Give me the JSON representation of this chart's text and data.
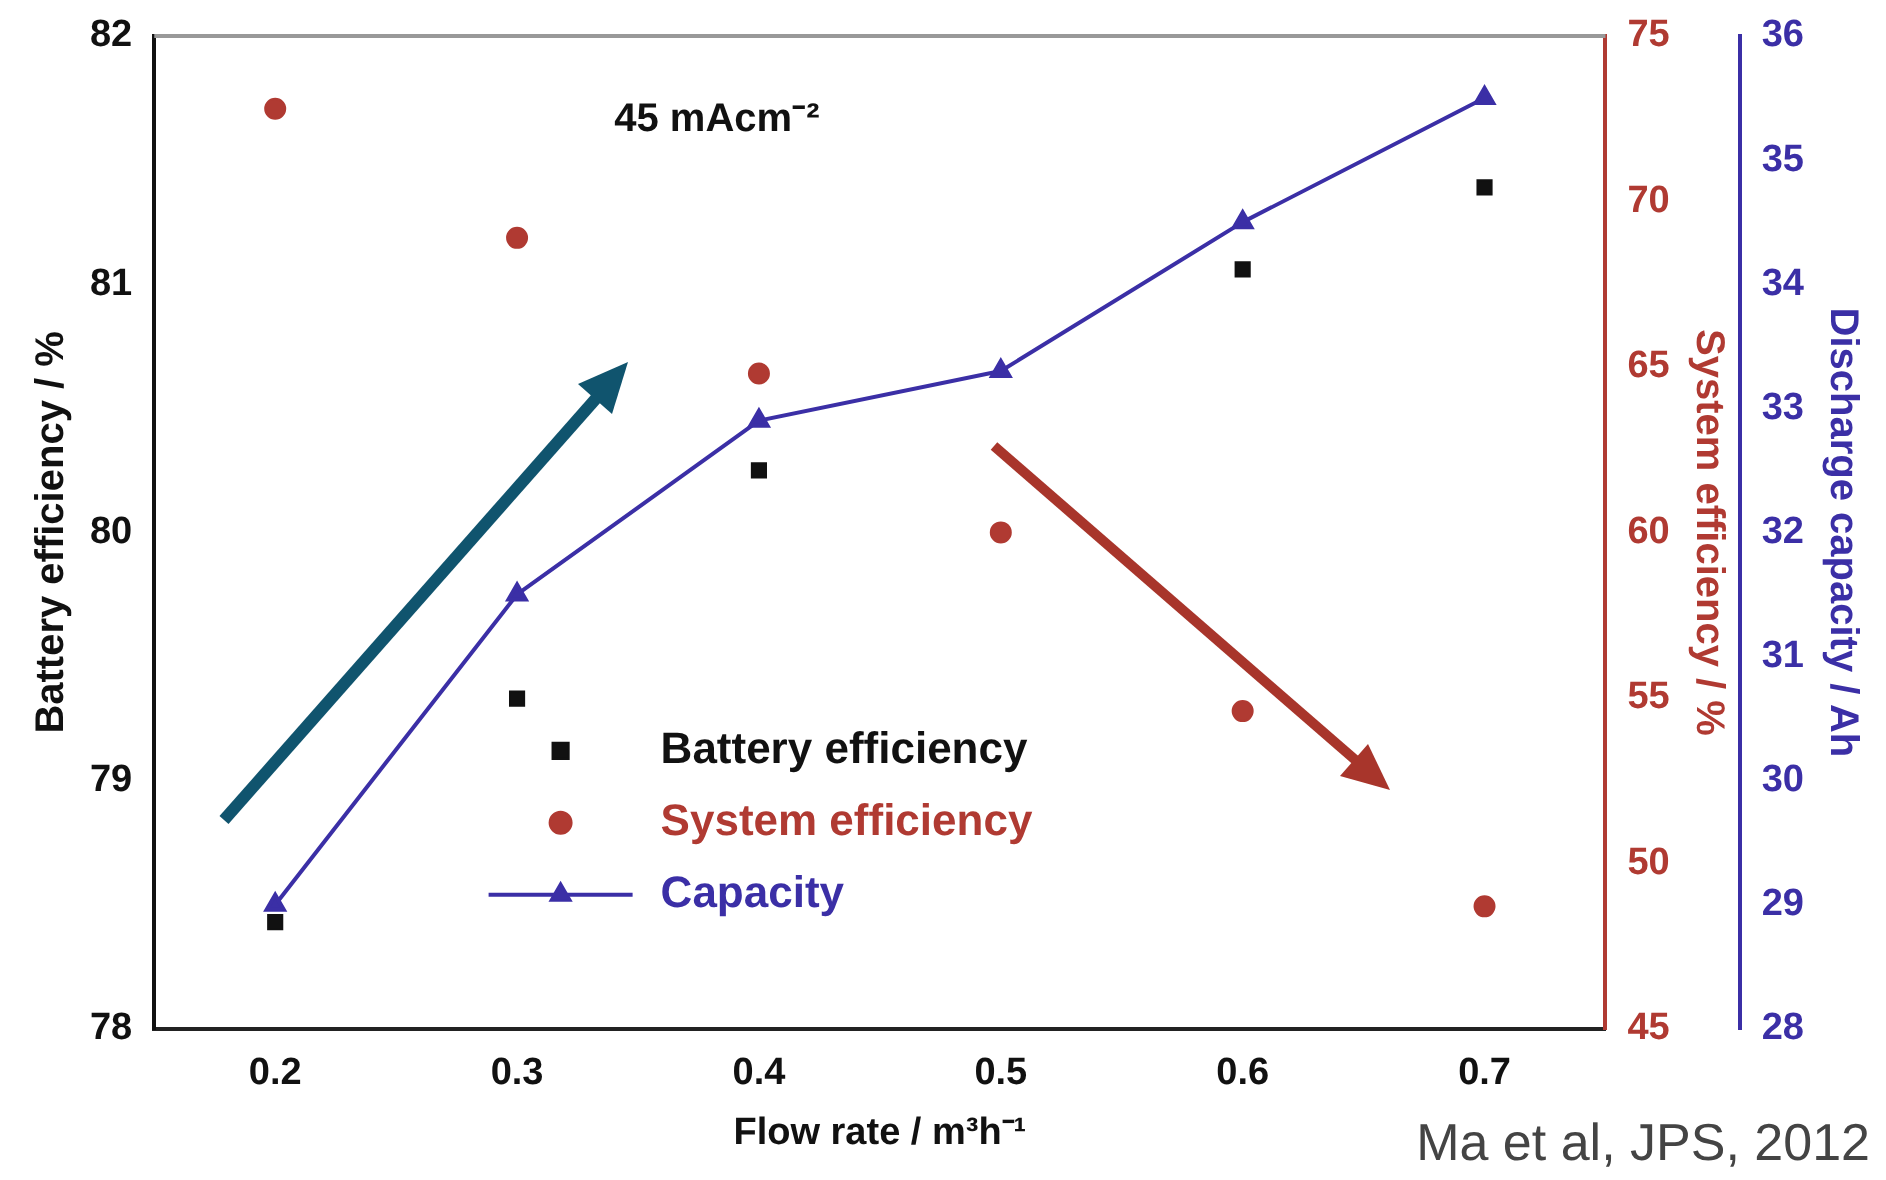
{
  "chart_data": {
    "type": "scatter",
    "xlabel": "Flow rate / m³h⁻¹",
    "ylabel": "Battery efficiency / %",
    "y2label": "System efficiency / %",
    "y3label": "Discharge capacity / Ah",
    "x": [
      0.2,
      0.3,
      0.4,
      0.5,
      0.6,
      0.7
    ],
    "xlim": [
      0.15,
      0.75
    ],
    "xticks": [
      0.2,
      0.3,
      0.4,
      0.5,
      0.6,
      0.7
    ],
    "ylim": [
      78,
      82
    ],
    "yticks": [
      78,
      79,
      80,
      81,
      82
    ],
    "y2lim": [
      45,
      75
    ],
    "y2ticks": [
      45,
      50,
      55,
      60,
      65,
      70,
      75
    ],
    "y3lim": [
      28,
      36
    ],
    "y3ticks": [
      28,
      29,
      30,
      31,
      32,
      33,
      34,
      35,
      36
    ],
    "series": [
      {
        "name": "Battery efficiency",
        "type": "scatter",
        "color": "#111111",
        "marker": "square",
        "axis": "y",
        "values": [
          78.43,
          79.33,
          80.25,
          null,
          81.06,
          81.39
        ]
      },
      {
        "name": "System efficiency",
        "type": "scatter",
        "color": "#b03a32",
        "marker": "circle",
        "axis": "y2",
        "values": [
          72.8,
          68.9,
          64.8,
          60.0,
          54.6,
          48.7
        ]
      },
      {
        "name": "Capacity",
        "type": "line",
        "color": "#3b2fa6",
        "marker": "triangle",
        "axis": "y3",
        "values": [
          29.0,
          31.5,
          32.9,
          33.3,
          34.5,
          35.5
        ]
      }
    ],
    "legend": "bottom",
    "grid": false,
    "annotations": [
      "45 mAcm⁻²",
      "Ma et al, JPS, 2012"
    ]
  }
}
